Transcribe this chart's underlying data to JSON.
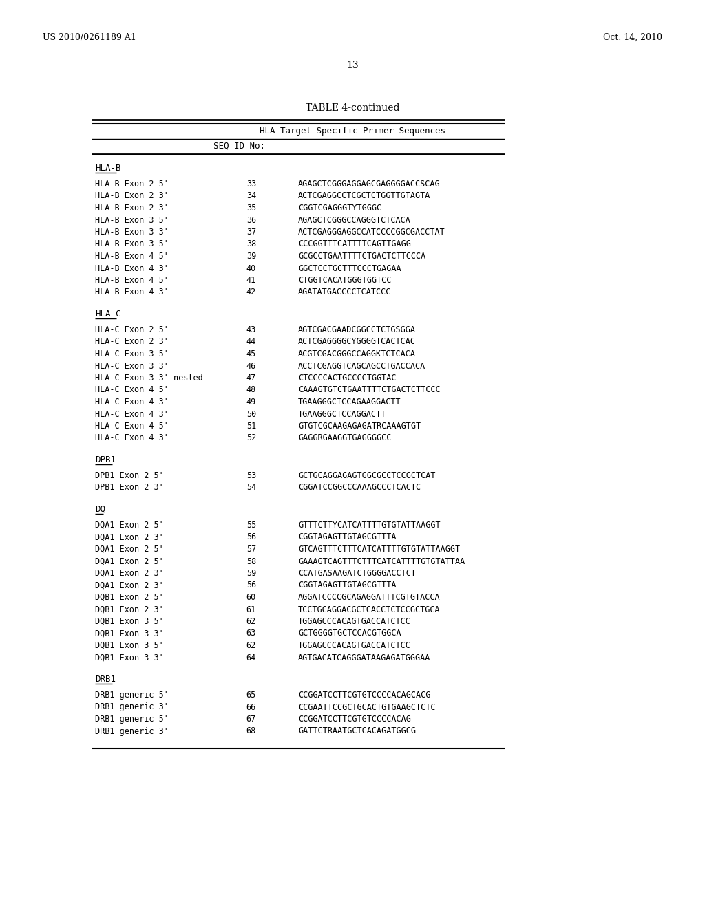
{
  "header_left": "US 2010/0261189 A1",
  "header_right": "Oct. 14, 2010",
  "page_number": "13",
  "table_title": "TABLE 4-continued",
  "table_subtitle": "HLA Target Specific Primer Sequences",
  "col_header": "SEQ ID No:",
  "background_color": "#ffffff",
  "fig_width": 10.24,
  "fig_height": 13.2,
  "dpi": 100,
  "sections": [
    {
      "name": "HLA-B",
      "rows": [
        [
          "HLA-B Exon 2 5'",
          "33",
          "AGAGCTCGGGAGGAGCGAGGGGACCSCAG"
        ],
        [
          "HLA-B Exon 2 3'",
          "34",
          "ACTCGAGGCCTCGCTCTGGTTGTAGTA"
        ],
        [
          "HLA-B Exon 2 3'",
          "35",
          "CGGTCGAGGGTYTGGGC"
        ],
        [
          "HLA-B Exon 3 5'",
          "36",
          "AGAGCTCGGGCCAGGGTCTCACA"
        ],
        [
          "HLA-B Exon 3 3'",
          "37",
          "ACTCGAGGGAGGCCATCCCCGGCGACCTAT"
        ],
        [
          "HLA-B Exon 3 5'",
          "38",
          "CCCGGTTTCATTTTCAGTTGAGG"
        ],
        [
          "HLA-B Exon 4 5'",
          "39",
          "GCGCCTGAATTTTCTGACTCTTCCCA"
        ],
        [
          "HLA-B Exon 4 3'",
          "40",
          "GGCTCCTGCTTTCCCTGAGAA"
        ],
        [
          "HLA-B Exon 4 5'",
          "41",
          "CTGGTCACATGGGTGGTCC"
        ],
        [
          "HLA-B Exon 4 3'",
          "42",
          "AGATATGACCCCTCATCCC"
        ]
      ]
    },
    {
      "name": "HLA-C",
      "rows": [
        [
          "HLA-C Exon 2 5'",
          "43",
          "AGTCGACGAADCGGCCTCTGSGGA"
        ],
        [
          "HLA-C Exon 2 3'",
          "44",
          "ACTCGAGGGGCYGGGGTCACTCAC"
        ],
        [
          "HLA-C Exon 3 5'",
          "45",
          "ACGTCGACGGGCCAGGKTCTCACA"
        ],
        [
          "HLA-C Exon 3 3'",
          "46",
          "ACCTCGAGGTCAGCAGCCTGACCACA"
        ],
        [
          "HLA-C Exon 3 3' nested",
          "47",
          "CTCCCCACTGCCCCTGGTAC"
        ],
        [
          "HLA-C Exon 4 5'",
          "48",
          "CAAAGTGTCTGAATTTTCTGACTCTTCCC"
        ],
        [
          "HLA-C Exon 4 3'",
          "49",
          "TGAAGGGCTCCAGAAGGACTT"
        ],
        [
          "HLA-C Exon 4 3'",
          "50",
          "TGAAGGGCTCCAGGACTT"
        ],
        [
          "HLA-C Exon 4 5'",
          "51",
          "GTGTCGCAAGAGAGATRCAAAGTGT"
        ],
        [
          "HLA-C Exon 4 3'",
          "52",
          "GAGGRGAAGGTGAGGGGCC"
        ]
      ]
    },
    {
      "name": "DPB1",
      "rows": [
        [
          "DPB1 Exon 2 5'",
          "53",
          "GCTGCAGGAGAGTGGCGCCTCCGCTCAT"
        ],
        [
          "DPB1 Exon 2 3'",
          "54",
          "CGGATCCGGCCCAAAGCCCTCACTC"
        ]
      ]
    },
    {
      "name": "DQ",
      "rows": [
        [
          "DQA1 Exon 2 5'",
          "55",
          "GTTTCTTYCATCATTTTGTGTATTAAGGT"
        ],
        [
          "DQA1 Exon 2 3'",
          "56",
          "CGGTAGAGTTGTAGCGTTTA"
        ],
        [
          "DQA1 Exon 2 5'",
          "57",
          "GTCAGTTTCTTTCATCATTTTGTGTATTAAGGT"
        ],
        [
          "DQA1 Exon 2 5'",
          "58",
          "GAAAGTCAGTTTCTTTCATCATTTTGTGTATTAA"
        ],
        [
          "DQA1 Exon 2 3'",
          "59",
          "CCATGASAAGATCTGGGGACCTCT"
        ],
        [
          "DQA1 Exon 2 3'",
          "56",
          "CGGTAGAGTTGTAGCGTTTA"
        ],
        [
          "DQB1 Exon 2 5'",
          "60",
          "AGGATCCCCGCAGAGGATTTCGTGTACCA"
        ],
        [
          "DQB1 Exon 2 3'",
          "61",
          "TCCTGCAGGACGCTCACCTCTCCGCTGCA"
        ],
        [
          "DQB1 Exon 3 5'",
          "62",
          "TGGAGCCCACAGTGACCATCTCC"
        ],
        [
          "DQB1 Exon 3 3'",
          "63",
          "GCTGGGGTGCTCCACGTGGCA"
        ],
        [
          "DQB1 Exon 3 5'",
          "62",
          "TGGAGCCCACAGTGACCATCTCC"
        ],
        [
          "DQB1 Exon 3 3'",
          "64",
          "AGTGACATCAGGGATAAGAGATGGGAA"
        ]
      ]
    },
    {
      "name": "DRB1",
      "rows": [
        [
          "DRB1 generic 5'",
          "65",
          "CCGGATCCTTCGTGTCCCCACAGCACG"
        ],
        [
          "DRB1 generic 3'",
          "66",
          "CCGAATTCCGCTGCACTGTGAAGCTCTC"
        ],
        [
          "DRB1 generic 5'",
          "67",
          "CCGGATCCTTCGTGTCCCCACAG"
        ],
        [
          "DRB1 generic 3'",
          "68",
          "GATTCTRAATGCTCACAGATGGCG"
        ]
      ]
    }
  ]
}
